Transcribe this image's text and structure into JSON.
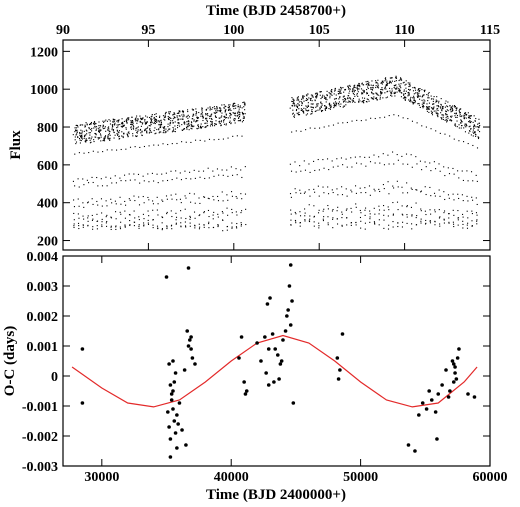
{
  "chart_data": [
    {
      "type": "scatter",
      "panel": "top",
      "xlabel": "Time (BJD 2458700+)",
      "ylabel": "Flux",
      "xlim": [
        90,
        115
      ],
      "ylim": [
        150,
        1260
      ],
      "xticks": [
        90,
        95,
        100,
        105,
        110,
        115
      ],
      "yticks": [
        200,
        400,
        600,
        800,
        1000,
        1200
      ],
      "xaxis_position": "top",
      "grid": false,
      "segments": [
        {
          "x_range": [
            90.6,
            100.7
          ],
          "baseline_start": 760,
          "baseline_end": 880,
          "min_flux": 250
        },
        {
          "x_range": [
            103.3,
            114.4
          ],
          "baseline_start": 900,
          "baseline_peak": 1020,
          "baseline_peak_x": 109.5,
          "baseline_end": 790,
          "min_flux": 260
        }
      ],
      "marker_color": "#000000"
    },
    {
      "type": "scatter",
      "panel": "bottom",
      "xlabel": "Time (BJD 2400000+)",
      "ylabel": "O-C (days)",
      "xlim": [
        27000,
        60000
      ],
      "ylim": [
        -0.003,
        0.004
      ],
      "xticks": [
        30000,
        40000,
        50000,
        60000
      ],
      "yticks": [
        -0.003,
        -0.002,
        -0.001,
        0,
        0.001,
        0.002,
        0.003,
        0.004
      ],
      "ytick_labels": [
        "-0.003",
        "-0.002",
        "-0.001",
        "0",
        "0.001",
        "0.002",
        "0.003",
        "0.004"
      ],
      "grid": false,
      "points": [
        [
          28500,
          0.0009
        ],
        [
          28500,
          -0.0009
        ],
        [
          35000,
          0.0033
        ],
        [
          35200,
          0.0004
        ],
        [
          35300,
          -0.0003
        ],
        [
          35400,
          -0.0006
        ],
        [
          35500,
          -0.0011
        ],
        [
          35600,
          -0.0015
        ],
        [
          35700,
          -0.0019
        ],
        [
          35800,
          -0.0024
        ],
        [
          35100,
          -0.0012
        ],
        [
          35200,
          -0.0017
        ],
        [
          35300,
          -0.0021
        ],
        [
          35400,
          -0.0008
        ],
        [
          35500,
          -0.0005
        ],
        [
          35600,
          -0.0002
        ],
        [
          35700,
          0.0001
        ],
        [
          35800,
          -0.0013
        ],
        [
          35900,
          -0.0016
        ],
        [
          36000,
          -0.0009
        ],
        [
          35300,
          -0.0027
        ],
        [
          35500,
          0.0005
        ],
        [
          36200,
          -0.0018
        ],
        [
          36400,
          0.0002
        ],
        [
          36600,
          0.0015
        ],
        [
          36700,
          0.0036
        ],
        [
          36800,
          0.0012
        ],
        [
          36900,
          0.0009
        ],
        [
          37000,
          0.0006
        ],
        [
          37200,
          0.0004
        ],
        [
          36500,
          -0.0023
        ],
        [
          36700,
          0.001
        ],
        [
          36900,
          0.0013
        ],
        [
          40800,
          0.0013
        ],
        [
          41000,
          -0.0002
        ],
        [
          41200,
          -0.0005
        ],
        [
          40600,
          0.0006
        ],
        [
          41100,
          -0.0006
        ],
        [
          42000,
          0.0011
        ],
        [
          42300,
          0.0005
        ],
        [
          42600,
          0.0013
        ],
        [
          42800,
          0.0024
        ],
        [
          43000,
          0.0026
        ],
        [
          43200,
          0.0014
        ],
        [
          43400,
          0.0009
        ],
        [
          43600,
          0.0007
        ],
        [
          43800,
          0.0004
        ],
        [
          44000,
          0.0012
        ],
        [
          44200,
          0.0015
        ],
        [
          44300,
          0.002
        ],
        [
          44400,
          0.0022
        ],
        [
          44500,
          0.003
        ],
        [
          44600,
          0.0037
        ],
        [
          44700,
          0.0025
        ],
        [
          42900,
          -0.0003
        ],
        [
          43300,
          -0.0002
        ],
        [
          44800,
          -0.0009
        ],
        [
          42700,
          0.0001
        ],
        [
          43900,
          0.0005
        ],
        [
          44600,
          0.0017
        ],
        [
          42900,
          0.0009
        ],
        [
          43700,
          -0.0001
        ],
        [
          48200,
          0.0006
        ],
        [
          48400,
          0.0002
        ],
        [
          48600,
          0.0014
        ],
        [
          48300,
          -0.0001
        ],
        [
          53700,
          -0.0023
        ],
        [
          54200,
          -0.0025
        ],
        [
          54500,
          -0.0013
        ],
        [
          54800,
          -0.0009
        ],
        [
          55100,
          -0.0011
        ],
        [
          55300,
          -0.0005
        ],
        [
          55500,
          -0.0008
        ],
        [
          55800,
          -0.0012
        ],
        [
          56000,
          -0.0006
        ],
        [
          56300,
          -0.0003
        ],
        [
          56600,
          0.0002
        ],
        [
          56900,
          -0.0005
        ],
        [
          57100,
          0.0005
        ],
        [
          57200,
          -0.0002
        ],
        [
          57300,
          0.0003
        ],
        [
          57400,
          -0.0001
        ],
        [
          57500,
          0.0006
        ],
        [
          57600,
          0.0009
        ],
        [
          57300,
          0.0001
        ],
        [
          57200,
          0.0004
        ],
        [
          56800,
          -0.0007
        ],
        [
          55900,
          -0.0021
        ],
        [
          58300,
          -0.0006
        ],
        [
          58800,
          -0.0007
        ]
      ],
      "fit_line": {
        "color": "#e32a2a",
        "x": [
          27700,
          30000,
          32000,
          34000,
          36000,
          38000,
          40000,
          42000,
          44000,
          46000,
          48000,
          50000,
          52000,
          54000,
          56000,
          58000,
          59000
        ],
        "y": [
          0.0003,
          -0.0004,
          -0.0009,
          -0.00103,
          -0.0008,
          -0.0002,
          0.0005,
          0.0011,
          0.00135,
          0.0011,
          0.0005,
          -0.0002,
          -0.0008,
          -0.00103,
          -0.0009,
          -0.0002,
          0.0003
        ]
      },
      "marker_color": "#000000"
    }
  ]
}
